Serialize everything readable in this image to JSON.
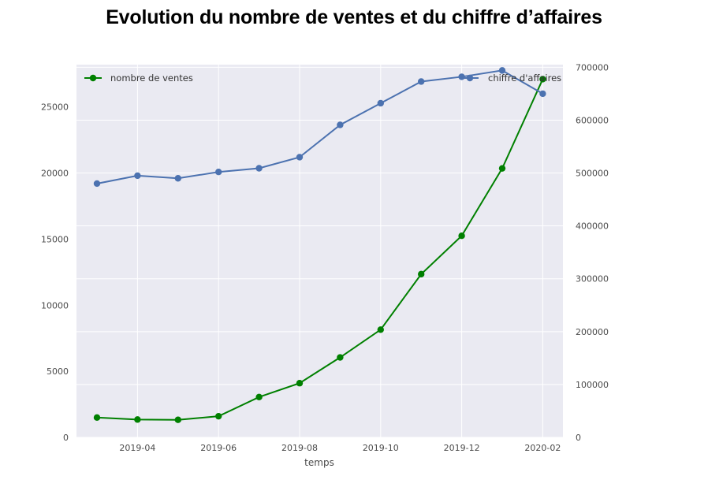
{
  "title": "Evolution du nombre de ventes et du chiffre d’affaires",
  "chart_data": {
    "type": "line",
    "title": "Evolution du nombre de ventes et du chiffre d’affaires",
    "xlabel": "temps",
    "x": [
      "2019-03",
      "2019-04",
      "2019-05",
      "2019-06",
      "2019-07",
      "2019-08",
      "2019-09",
      "2019-10",
      "2019-11",
      "2019-12",
      "2020-01",
      "2020-02"
    ],
    "x_tick_labels": [
      "2019-04",
      "2019-06",
      "2019-08",
      "2019-10",
      "2019-12",
      "2020-02"
    ],
    "y_left": {
      "ylim": [
        0,
        28200
      ],
      "ticks": [
        0,
        5000,
        10000,
        15000,
        20000,
        25000
      ]
    },
    "y_right": {
      "ylim": [
        0,
        705000
      ],
      "ticks": [
        0,
        100000,
        200000,
        300000,
        400000,
        500000,
        600000,
        700000
      ]
    },
    "series": [
      {
        "name": "nombre de ventes",
        "axis": "left",
        "color": "#008000",
        "values": [
          1500,
          1350,
          1330,
          1600,
          3050,
          4100,
          6050,
          8150,
          12350,
          15250,
          20350,
          27100
        ]
      },
      {
        "name": "chiffre d'affaires",
        "axis": "right",
        "color": "#4c72b0",
        "values": [
          480000,
          495000,
          490000,
          502000,
          509000,
          530000,
          591000,
          632000,
          673000,
          682000,
          694000,
          650000
        ]
      }
    ],
    "grid": true,
    "legend": [
      "top-left",
      "top-right"
    ]
  }
}
